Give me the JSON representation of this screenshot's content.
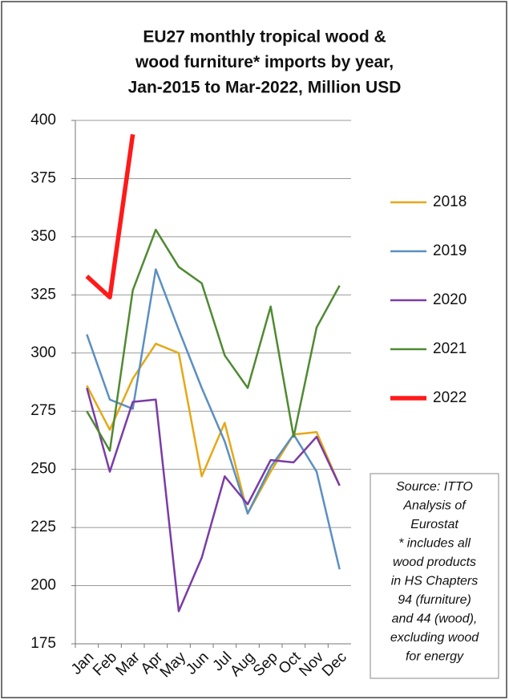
{
  "chart_data": {
    "type": "line",
    "title": [
      "EU27 monthly tropical wood &",
      "wood furniture* imports by year,",
      "Jan-2015 to Mar-2022, Million USD"
    ],
    "categories": [
      "Jan",
      "Feb",
      "Mar",
      "Apr",
      "May",
      "Jun",
      "Jul",
      "Aug",
      "Sep",
      "Oct",
      "Nov",
      "Dec"
    ],
    "series": [
      {
        "name": "2018",
        "color": "#e6a817",
        "linewidth": 2.5,
        "values": [
          286,
          267,
          289,
          304,
          300,
          247,
          270,
          231,
          249,
          265,
          266,
          243
        ]
      },
      {
        "name": "2019",
        "color": "#5b8fc3",
        "linewidth": 2.5,
        "values": [
          308,
          280,
          276,
          336,
          310,
          285,
          262,
          231,
          251,
          265,
          249,
          207
        ]
      },
      {
        "name": "2020",
        "color": "#7a3ca6",
        "linewidth": 2.5,
        "values": [
          285,
          249,
          279,
          280,
          189,
          212,
          247,
          235,
          254,
          253,
          264,
          243
        ]
      },
      {
        "name": "2021",
        "color": "#4f8a32",
        "linewidth": 2.5,
        "values": [
          275,
          258,
          327,
          353,
          337,
          330,
          299,
          285,
          320,
          264,
          311,
          329
        ]
      },
      {
        "name": "2022",
        "color": "#ff1a1a",
        "linewidth": 5.5,
        "values": [
          333,
          324,
          394,
          null,
          null,
          null,
          null,
          null,
          null,
          null,
          null,
          null
        ]
      }
    ],
    "ylim": [
      175,
      400
    ],
    "yticks": [
      175,
      200,
      225,
      250,
      275,
      300,
      325,
      350,
      375,
      400
    ],
    "grid": true,
    "legend": "right",
    "annotation": [
      "Source: ITTO",
      "Analysis of",
      "Eurostat",
      "* includes all",
      "wood products",
      "in HS Chapters",
      "94 (furniture)",
      "and 44 (wood),",
      "excluding wood",
      "for energy"
    ]
  }
}
